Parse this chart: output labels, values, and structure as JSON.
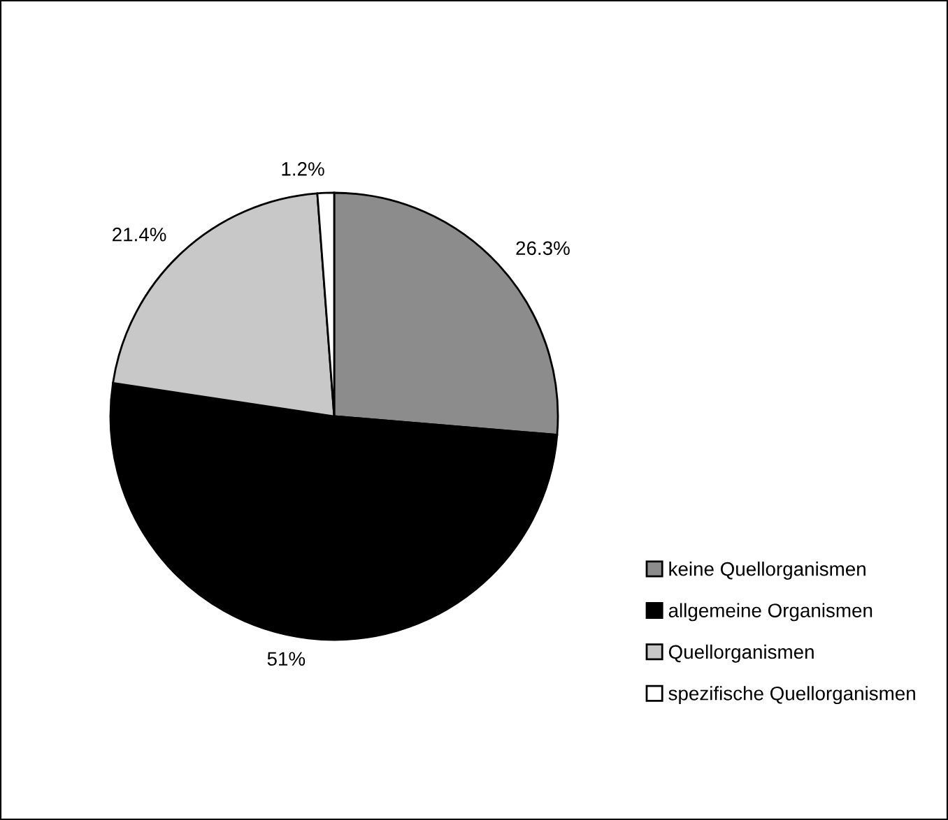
{
  "chart_data": {
    "type": "pie",
    "categories": [
      "keine Quellorganismen",
      "allgemeine Organismen",
      "Quellorganismen",
      "spezifische Quellorganismen"
    ],
    "values": [
      26.3,
      51,
      21.4,
      1.2
    ],
    "value_labels": [
      "26.3%",
      "51%",
      "21.4%",
      "1.2%"
    ],
    "colors": [
      "#8c8c8c",
      "#000000",
      "#c8c8c8",
      "#ffffff"
    ],
    "legend": "bottom right"
  }
}
